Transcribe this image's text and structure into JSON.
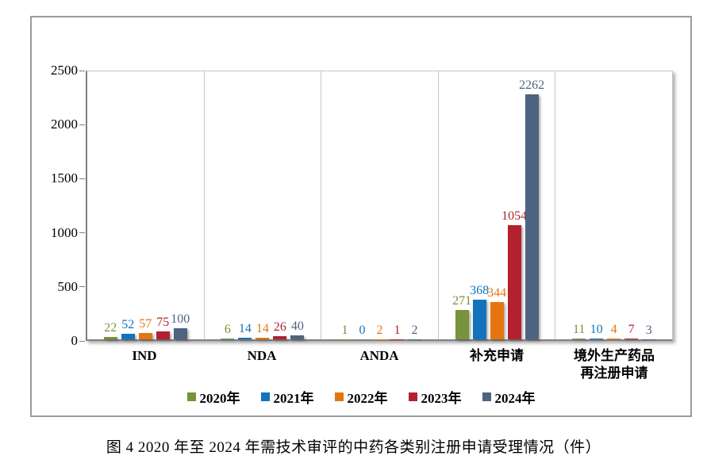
{
  "figure": {
    "caption": "图 4  2020 年至 2024 年需技术审评的中药各类别注册申请受理情况（件）"
  },
  "chart_data": {
    "type": "bar",
    "title": "",
    "xlabel": "",
    "ylabel": "",
    "categories": [
      "IND",
      "NDA",
      "ANDA",
      "补充申请",
      "境外生产药品\n再注册申请"
    ],
    "series": [
      {
        "name": "2020年",
        "color": "#77933C",
        "values": [
          22,
          6,
          1,
          271,
          11
        ]
      },
      {
        "name": "2021年",
        "color": "#1273BC",
        "values": [
          52,
          14,
          0,
          368,
          10
        ]
      },
      {
        "name": "2022年",
        "color": "#E6750F",
        "values": [
          57,
          14,
          2,
          344,
          4
        ]
      },
      {
        "name": "2023年",
        "color": "#B3212E",
        "values": [
          75,
          26,
          1,
          1054,
          7
        ]
      },
      {
        "name": "2024年",
        "color": "#4C6480",
        "values": [
          100,
          40,
          2,
          2262,
          3
        ]
      }
    ],
    "ylim": [
      0,
      2500
    ],
    "yticks": [
      0,
      500,
      1000,
      1500,
      2000,
      2500
    ],
    "legend_position": "bottom",
    "grid": "vertical-panel-separators",
    "axis_color": "#7f7f7f",
    "panel_line_color": "#c6c6c6"
  }
}
